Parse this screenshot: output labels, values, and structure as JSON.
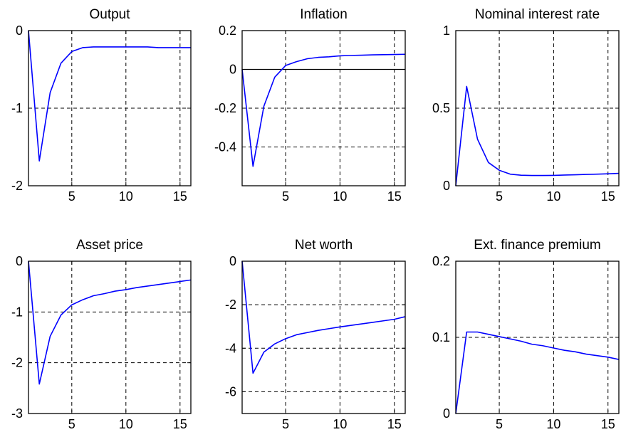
{
  "colors": {
    "line": "#0000ff",
    "axes": "#000000",
    "grid": "#000000",
    "background": "#ffffff"
  },
  "chart_data": [
    {
      "type": "line",
      "title": "Output",
      "xlim": [
        1,
        16
      ],
      "ylim": [
        -2,
        0
      ],
      "xticks": [
        5,
        10,
        15
      ],
      "xticklabels": [
        "5",
        "10",
        "15"
      ],
      "yticks": [
        -2,
        -1,
        0
      ],
      "yticklabels": [
        "-2",
        "-1",
        "0"
      ],
      "grid": true,
      "zero_line": false,
      "x": [
        1,
        2,
        3,
        4,
        5,
        6,
        7,
        8,
        9,
        10,
        11,
        12,
        13,
        14,
        15,
        16
      ],
      "series": [
        {
          "values": [
            0,
            -1.68,
            -0.8,
            -0.42,
            -0.27,
            -0.22,
            -0.21,
            -0.21,
            -0.21,
            -0.21,
            -0.21,
            -0.21,
            -0.22,
            -0.22,
            -0.22,
            -0.22
          ]
        }
      ]
    },
    {
      "type": "line",
      "title": "Inflation",
      "xlim": [
        1,
        16
      ],
      "ylim": [
        -0.6,
        0.2
      ],
      "xticks": [
        5,
        10,
        15
      ],
      "xticklabels": [
        "5",
        "10",
        "15"
      ],
      "yticks": [
        -0.4,
        -0.2,
        0,
        0.2
      ],
      "yticklabels": [
        "-0.4",
        "-0.2",
        "0",
        "0.2"
      ],
      "grid": true,
      "zero_line": true,
      "x": [
        1,
        2,
        3,
        4,
        5,
        6,
        7,
        8,
        9,
        10,
        11,
        12,
        13,
        14,
        15,
        16
      ],
      "series": [
        {
          "values": [
            0,
            -0.5,
            -0.19,
            -0.04,
            0.02,
            0.04,
            0.055,
            0.062,
            0.065,
            0.07,
            0.072,
            0.073,
            0.075,
            0.076,
            0.077,
            0.078
          ]
        }
      ]
    },
    {
      "type": "line",
      "title": "Nominal interest rate",
      "xlim": [
        1,
        16
      ],
      "ylim": [
        0,
        1
      ],
      "xticks": [
        5,
        10,
        15
      ],
      "xticklabels": [
        "5",
        "10",
        "15"
      ],
      "yticks": [
        0,
        0.5,
        1
      ],
      "yticklabels": [
        "0",
        "0.5",
        "1"
      ],
      "grid": true,
      "zero_line": false,
      "x": [
        1,
        2,
        3,
        4,
        5,
        6,
        7,
        8,
        9,
        10,
        11,
        12,
        13,
        14,
        15,
        16
      ],
      "series": [
        {
          "values": [
            0,
            0.64,
            0.3,
            0.15,
            0.1,
            0.075,
            0.068,
            0.066,
            0.066,
            0.067,
            0.069,
            0.071,
            0.073,
            0.075,
            0.077,
            0.08
          ]
        }
      ]
    },
    {
      "type": "line",
      "title": "Asset price",
      "xlim": [
        1,
        16
      ],
      "ylim": [
        -3,
        0
      ],
      "xticks": [
        5,
        10,
        15
      ],
      "xticklabels": [
        "5",
        "10",
        "15"
      ],
      "yticks": [
        -3,
        -2,
        -1,
        0
      ],
      "yticklabels": [
        "-3",
        "-2",
        "-1",
        "0"
      ],
      "grid": true,
      "zero_line": false,
      "x": [
        1,
        2,
        3,
        4,
        5,
        6,
        7,
        8,
        9,
        10,
        11,
        12,
        13,
        14,
        15,
        16
      ],
      "series": [
        {
          "values": [
            0,
            -2.42,
            -1.48,
            -1.06,
            -0.86,
            -0.76,
            -0.68,
            -0.64,
            -0.59,
            -0.56,
            -0.52,
            -0.49,
            -0.46,
            -0.43,
            -0.4,
            -0.37
          ]
        }
      ]
    },
    {
      "type": "line",
      "title": "Net worth",
      "xlim": [
        1,
        16
      ],
      "ylim": [
        -7,
        0
      ],
      "xticks": [
        5,
        10,
        15
      ],
      "xticklabels": [
        "5",
        "10",
        "15"
      ],
      "yticks": [
        -6,
        -4,
        -2,
        0
      ],
      "yticklabels": [
        "-6",
        "-4",
        "-2",
        "0"
      ],
      "grid": true,
      "zero_line": false,
      "x": [
        1,
        2,
        3,
        4,
        5,
        6,
        7,
        8,
        9,
        10,
        11,
        12,
        13,
        14,
        15,
        16
      ],
      "series": [
        {
          "values": [
            0,
            -5.15,
            -4.18,
            -3.8,
            -3.56,
            -3.38,
            -3.28,
            -3.18,
            -3.1,
            -3.02,
            -2.95,
            -2.88,
            -2.81,
            -2.74,
            -2.67,
            -2.55
          ]
        }
      ]
    },
    {
      "type": "line",
      "title": "Ext. finance premium",
      "xlim": [
        1,
        16
      ],
      "ylim": [
        0,
        0.2
      ],
      "xticks": [
        5,
        10,
        15
      ],
      "xticklabels": [
        "5",
        "10",
        "15"
      ],
      "yticks": [
        0,
        0.1,
        0.2
      ],
      "yticklabels": [
        "0",
        "0.1",
        "0.2"
      ],
      "grid": true,
      "zero_line": false,
      "x": [
        1,
        2,
        3,
        4,
        5,
        6,
        7,
        8,
        9,
        10,
        11,
        12,
        13,
        14,
        15,
        16
      ],
      "series": [
        {
          "values": [
            0,
            0.107,
            0.107,
            0.104,
            0.101,
            0.098,
            0.095,
            0.091,
            0.089,
            0.086,
            0.083,
            0.081,
            0.078,
            0.076,
            0.074,
            0.071
          ]
        }
      ]
    }
  ]
}
